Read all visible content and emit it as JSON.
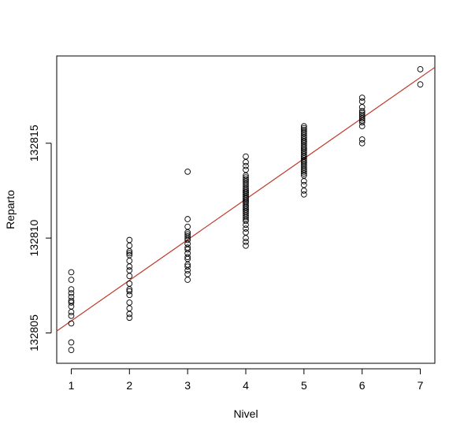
{
  "chart_data": {
    "type": "scatter",
    "title": "",
    "xlabel": "Nivel",
    "ylabel": "Reparto",
    "xlim": [
      0.75,
      7.25
    ],
    "ylim": [
      132803.4,
      132819.6
    ],
    "x_ticks": [
      1,
      2,
      3,
      4,
      5,
      6,
      7
    ],
    "x_tick_labels": [
      "1",
      "2",
      "3",
      "4",
      "5",
      "6",
      "7"
    ],
    "y_ticks": [
      132805,
      132810,
      132815
    ],
    "y_tick_labels": [
      "132805",
      "132810",
      "132815"
    ],
    "grid": false,
    "legend": "none",
    "regression_line": {
      "color": "#c0392b",
      "x": [
        0.75,
        7.25
      ],
      "y": [
        132805.1,
        132819.0
      ]
    },
    "series": [
      {
        "x": [
          1,
          1,
          1,
          1,
          1,
          1,
          1,
          1,
          1,
          1,
          1,
          1,
          1,
          2,
          2,
          2,
          2,
          2,
          2,
          2,
          2,
          2,
          2,
          2,
          2,
          2,
          2,
          2,
          2,
          2,
          3,
          3,
          3,
          3,
          3,
          3,
          3,
          3,
          3,
          3,
          3,
          3,
          3,
          3,
          3,
          3,
          3,
          3,
          3,
          4,
          4,
          4,
          4,
          4,
          4,
          4,
          4,
          4,
          4,
          4,
          4,
          4,
          4,
          4,
          4,
          4,
          4,
          4,
          4,
          4,
          4,
          4,
          4,
          4,
          4,
          4,
          4,
          4,
          4,
          4,
          4,
          4,
          4,
          4,
          4,
          4,
          4,
          4,
          4,
          4,
          4,
          4,
          4,
          5,
          5,
          5,
          5,
          5,
          5,
          5,
          5,
          5,
          5,
          5,
          5,
          5,
          5,
          5,
          5,
          5,
          5,
          5,
          5,
          5,
          5,
          5,
          5,
          5,
          5,
          5,
          5,
          5,
          5,
          5,
          5,
          5,
          5,
          5,
          6,
          6,
          6,
          6,
          6,
          6,
          6,
          6,
          6,
          6,
          6,
          6,
          6,
          7,
          7
        ],
        "y": [
          132808.2,
          132807.8,
          132807.3,
          132807.1,
          132806.9,
          132806.6,
          132806.4,
          132806.1,
          132805.9,
          132805.5,
          132804.5,
          132804.1,
          132806.7,
          132809.9,
          132809.6,
          132809.3,
          132809.1,
          132808.8,
          132808.5,
          132808.3,
          132808.0,
          132807.6,
          132807.3,
          132807.0,
          132806.6,
          132806.3,
          132806.0,
          132805.8,
          132809.2,
          132807.2,
          132813.5,
          132811.0,
          132810.6,
          132810.3,
          132810.1,
          132809.9,
          132809.7,
          132809.4,
          132809.2,
          132808.9,
          132808.6,
          132808.3,
          132808.1,
          132807.8,
          132810.0,
          132809.0,
          132808.5,
          132809.5,
          132810.2,
          132814.3,
          132814.0,
          132813.8,
          132813.6,
          132813.3,
          132813.1,
          132812.9,
          132812.7,
          132812.5,
          132812.3,
          132812.1,
          132811.9,
          132811.7,
          132811.5,
          132811.3,
          132811.1,
          132810.9,
          132810.7,
          132810.5,
          132810.3,
          132810.0,
          132809.8,
          132809.6,
          132812.0,
          132812.2,
          132812.4,
          132812.6,
          132812.8,
          132811.8,
          132811.6,
          132811.4,
          132811.2,
          132813.0,
          132813.2,
          132811.0,
          132812.0,
          132812.3,
          132811.9,
          132812.5,
          132812.1,
          132811.7,
          132812.2,
          132812.4,
          132811.5,
          132815.9,
          132815.7,
          132815.5,
          132815.3,
          132815.1,
          132814.9,
          132814.7,
          132814.5,
          132814.3,
          132814.1,
          132813.9,
          132813.7,
          132813.5,
          132813.3,
          132813.0,
          132812.8,
          132812.5,
          132812.3,
          132815.0,
          132814.8,
          132814.6,
          132814.4,
          132814.2,
          132814.0,
          132813.8,
          132813.6,
          132815.2,
          132815.4,
          132815.6,
          132814.0,
          132813.4,
          132815.8,
          132815.1,
          132814.3,
          132814.7,
          132817.4,
          132817.2,
          132816.9,
          132816.7,
          132816.5,
          132816.3,
          132816.1,
          132815.9,
          132815.2,
          132815.0,
          132816.6,
          132816.4,
          132816.2,
          132818.9,
          132818.1
        ]
      }
    ]
  }
}
